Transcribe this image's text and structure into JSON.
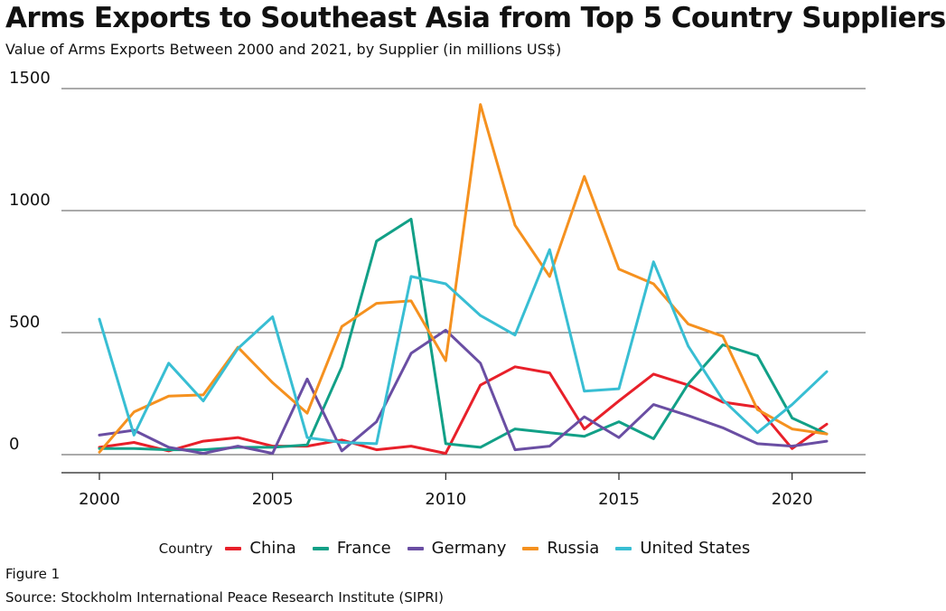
{
  "chart_data": {
    "type": "line",
    "title": "Arms Exports to Southeast Asia from Top 5 Country Suppliers",
    "subtitle": "Value of Arms Exports Between 2000 and 2021, by Supplier (in millions US$)",
    "legend_title": "Country",
    "legend_position": "bottom",
    "grid": "horizontal",
    "xlim": [
      2000,
      2021
    ],
    "ylim": [
      0,
      1500
    ],
    "x_ticks": [
      2000,
      2005,
      2010,
      2015,
      2020
    ],
    "y_ticks": [
      0,
      500,
      1000,
      1500
    ],
    "x": [
      2000,
      2001,
      2002,
      2003,
      2004,
      2005,
      2006,
      2007,
      2008,
      2009,
      2010,
      2011,
      2012,
      2013,
      2014,
      2015,
      2016,
      2017,
      2018,
      2019,
      2020,
      2021
    ],
    "series": [
      {
        "name": "China",
        "color": "#e8202a",
        "values": [
          30,
          50,
          15,
          55,
          70,
          35,
          35,
          60,
          20,
          35,
          5,
          285,
          360,
          335,
          105,
          220,
          330,
          285,
          215,
          195,
          25,
          125
        ]
      },
      {
        "name": "France",
        "color": "#12a087",
        "values": [
          25,
          25,
          20,
          20,
          30,
          30,
          40,
          360,
          875,
          965,
          45,
          30,
          105,
          90,
          75,
          135,
          65,
          290,
          450,
          405,
          150,
          85
        ]
      },
      {
        "name": "Germany",
        "color": "#6a4ea3",
        "values": [
          80,
          100,
          30,
          5,
          35,
          5,
          310,
          15,
          135,
          415,
          510,
          375,
          20,
          35,
          155,
          70,
          205,
          160,
          110,
          45,
          35,
          55
        ]
      },
      {
        "name": "Russia",
        "color": "#f5911f",
        "values": [
          10,
          175,
          240,
          245,
          440,
          295,
          170,
          525,
          620,
          630,
          385,
          1435,
          940,
          730,
          1140,
          760,
          700,
          535,
          485,
          185,
          105,
          85
        ]
      },
      {
        "name": "United States",
        "color": "#38bed3",
        "values": [
          555,
          80,
          375,
          220,
          435,
          565,
          70,
          50,
          45,
          730,
          700,
          570,
          490,
          840,
          260,
          270,
          790,
          445,
          225,
          90,
          205,
          340
        ]
      }
    ]
  },
  "footer": {
    "figure_label": "Figure 1",
    "source": "Source: Stockholm International Peace Research Institute (SIPRI)"
  }
}
